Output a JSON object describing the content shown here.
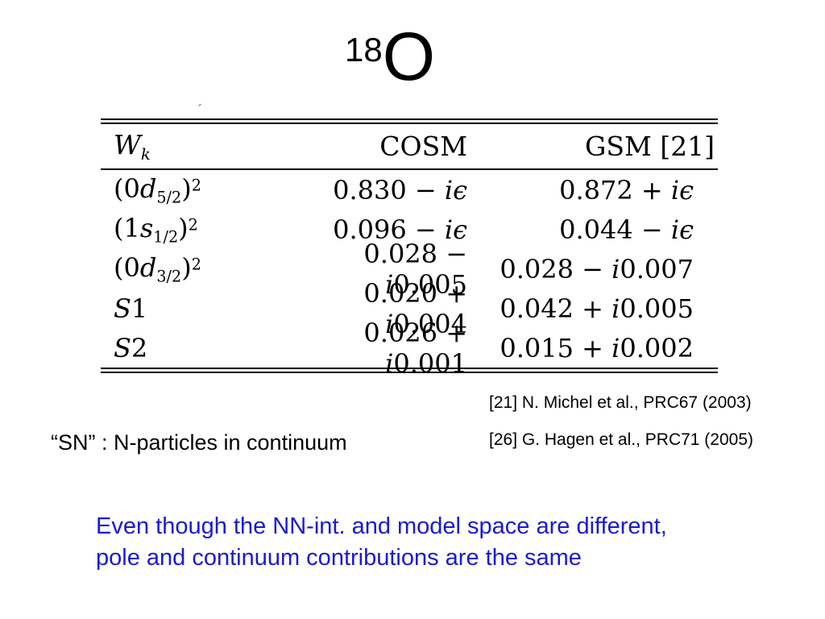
{
  "title": {
    "mass_number": "18",
    "element": "O"
  },
  "stray_mark": "´",
  "table": {
    "header": [
      "*W*_{*k*}",
      "COSM",
      "GSM [21]"
    ],
    "rows": [
      {
        "cells": [
          "(0*d*_{5/2})^{2}",
          "0.830 − *iϵ*",
          "0.872 + *iϵ*"
        ]
      },
      {
        "cells": [
          "(1*s*_{1/2})^{2}",
          "0.096 − *iϵ*",
          "0.044 − *iϵ*"
        ]
      },
      {
        "cells": [
          "(0*d*_{3/2})^{2}",
          "0.028 − *i*0.005",
          "0.028 − *i*0.007"
        ]
      },
      {
        "cells": [
          "*S*1",
          "0.020 + *i*0.004",
          "0.042 + *i*0.005"
        ]
      },
      {
        "cells": [
          "*S*2",
          "0.026 + *i*0.001",
          "0.015 + *i*0.002"
        ]
      }
    ]
  },
  "references": [
    "[21] N. Michel et al., PRC67 (2003)",
    "[26] G. Hagen et al., PRC71 (2005)"
  ],
  "sn_note": "“SN” : N-particles in continuum",
  "conclusion": {
    "lines": [
      "Even though the NN-int. and model space are different,",
      "pole and continuum contributions are the same"
    ]
  },
  "colors": {
    "background": "#ffffff",
    "text": "#000000",
    "conclusion_blue": "#1a1ad1"
  }
}
